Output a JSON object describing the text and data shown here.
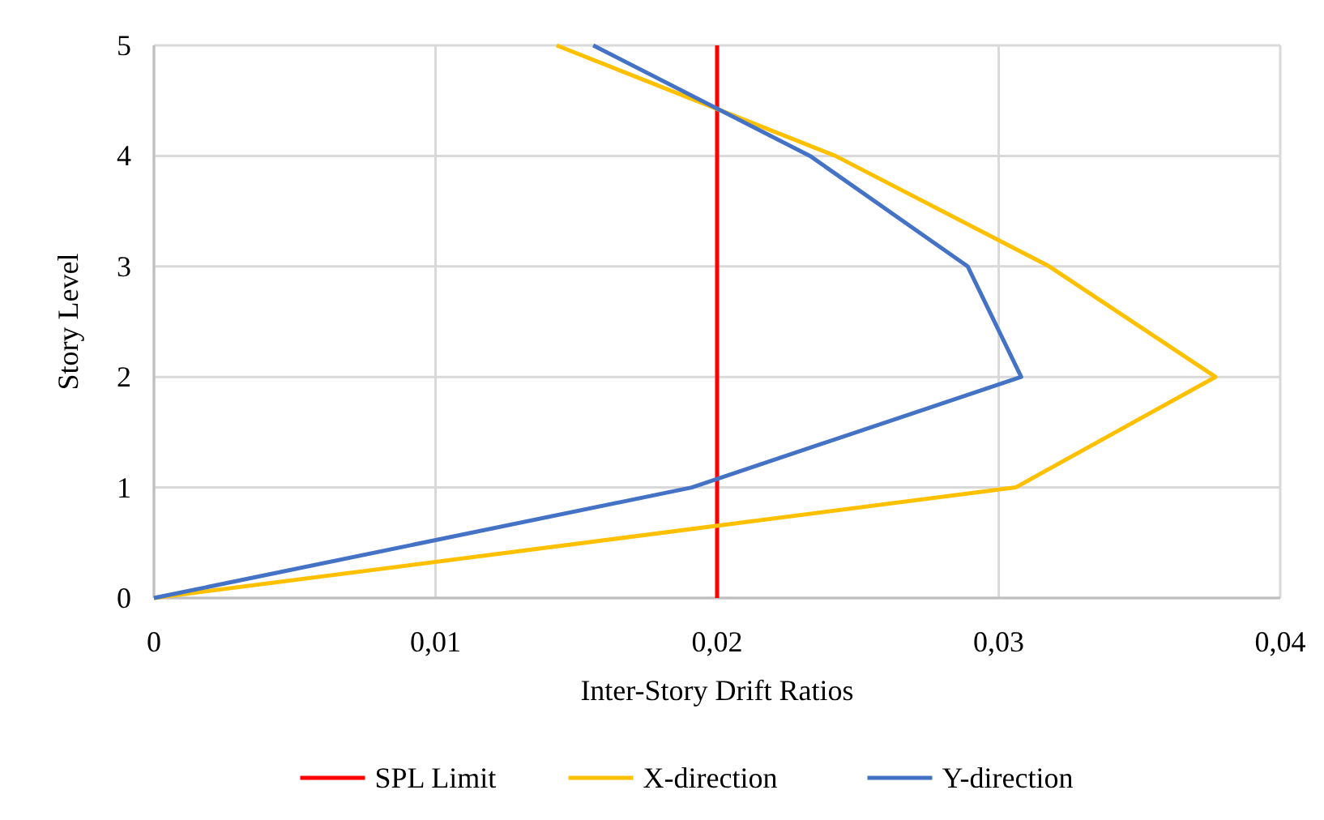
{
  "chart_data": {
    "type": "line",
    "xlabel": "Inter-Story Drift Ratios",
    "ylabel": "Story Level",
    "xlim": [
      0,
      0.04
    ],
    "xticks": [
      {
        "value": 0,
        "label": "0"
      },
      {
        "value": 0.01,
        "label": "0,01"
      },
      {
        "value": 0.02,
        "label": "0,02"
      },
      {
        "value": 0.03,
        "label": "0,03"
      },
      {
        "value": 0.04,
        "label": "0,04"
      }
    ],
    "ylim": [
      0,
      5
    ],
    "yticks": [
      0,
      1,
      2,
      3,
      4,
      5
    ],
    "grid": true,
    "legend": "bottom",
    "marker": "none",
    "line_style": "solid",
    "series": [
      {
        "name": "SPL Limit",
        "color": "#ff0000",
        "x": [
          0.02,
          0.02
        ],
        "values": [
          0,
          5
        ]
      },
      {
        "name": "X-direction",
        "color": "#ffc000",
        "x": [
          0,
          0.0306,
          0.0377,
          0.0318,
          0.0242,
          0.0143
        ],
        "values": [
          0,
          1,
          2,
          3,
          4,
          5
        ]
      },
      {
        "name": "Y-direction",
        "color": "#4472c4",
        "x": [
          0,
          0.0191,
          0.0308,
          0.0289,
          0.0233,
          0.0156
        ],
        "values": [
          0,
          1,
          2,
          3,
          4,
          5
        ]
      }
    ]
  }
}
